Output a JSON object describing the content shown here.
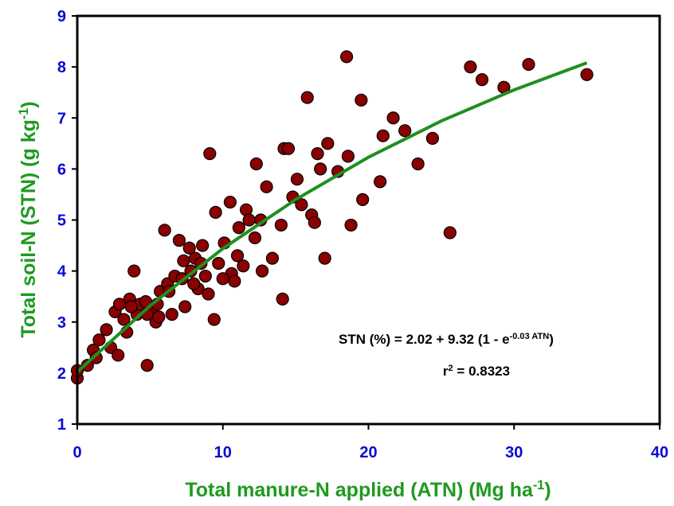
{
  "chart_data": {
    "type": "scatter",
    "xlabel": [
      "Total manure-N applied (ATN) (Mg ha",
      "-1",
      ")"
    ],
    "ylabel": [
      "Total soil-N (STN) (g kg",
      "-1",
      ")"
    ],
    "annotations": {
      "equation": [
        "STN (%) = 2.02 + 9.32 (1 - e",
        "-0.03 ATN",
        ")"
      ],
      "r2": [
        "r",
        "2",
        " = 0.8323"
      ]
    },
    "xlim": [
      0,
      40
    ],
    "xticks": [
      0,
      10,
      20,
      30,
      40
    ],
    "ylim": [
      1,
      9
    ],
    "yticks": [
      1,
      2,
      3,
      4,
      5,
      6,
      7,
      8,
      9
    ],
    "points": {
      "color": "#8b0000",
      "x": [
        0,
        0,
        0.7,
        1.1,
        1.5,
        2,
        2.3,
        2.8,
        2.6,
        3.2,
        3.4,
        3.6,
        3.9,
        4.1,
        4.3,
        4.7,
        4.8,
        5.1,
        5.4,
        5.5,
        5.7,
        6.0,
        6.2,
        6.5,
        6.7,
        7.0,
        7.3,
        7.4,
        7.7,
        7.8,
        8.1,
        8.3,
        8.6,
        8.8,
        9.1,
        9.0,
        9.4,
        9.5,
        9.7,
        10.1,
        10.5,
        10.6,
        10.8,
        11.1,
        11.4,
        11.6,
        11.8,
        12.2,
        12.3,
        12.6,
        12.7,
        13.0,
        13.4,
        14.0,
        14.1,
        14.2,
        14.5,
        14.8,
        15.1,
        15.4,
        15.8,
        16.1,
        16.3,
        16.5,
        16.7,
        17.0,
        17.2,
        17.9,
        18.5,
        18.6,
        18.8,
        19.5,
        19.6,
        20.8,
        21.0,
        21.7,
        22.5,
        23.4,
        24.4,
        25.6,
        27.0,
        27.8,
        29.3,
        31.0,
        35.0,
        1.3,
        2.9,
        3.7,
        4.8,
        5.6,
        6.3,
        7.2,
        8.0,
        8.5,
        10.0,
        11.0
      ],
      "y": [
        1.9,
        2.05,
        2.15,
        2.45,
        2.65,
        2.85,
        2.5,
        2.35,
        3.2,
        3.05,
        2.8,
        3.45,
        4.0,
        3.15,
        3.35,
        3.4,
        2.15,
        3.2,
        3.0,
        3.35,
        3.6,
        4.8,
        3.75,
        3.15,
        3.9,
        4.6,
        4.2,
        3.3,
        4.45,
        4.0,
        4.25,
        3.65,
        4.5,
        3.9,
        6.3,
        3.55,
        3.05,
        5.15,
        4.15,
        4.55,
        5.35,
        3.95,
        3.8,
        4.85,
        4.1,
        5.2,
        5.0,
        4.65,
        6.1,
        5.0,
        4.0,
        5.65,
        4.25,
        4.9,
        3.45,
        6.4,
        6.4,
        5.45,
        5.8,
        5.3,
        7.4,
        5.1,
        4.95,
        6.3,
        6.0,
        4.25,
        6.5,
        5.95,
        8.2,
        6.25,
        4.9,
        7.35,
        5.4,
        5.75,
        6.65,
        7.0,
        6.75,
        6.1,
        6.6,
        4.75,
        8.0,
        7.75,
        7.6,
        8.05,
        7.85,
        2.3,
        3.35,
        3.3,
        3.15,
        3.1,
        3.6,
        3.85,
        3.75,
        4.15,
        3.85,
        4.3
      ]
    },
    "fit": {
      "color": "#1f8f1f",
      "x": [
        0,
        5,
        10,
        15,
        20,
        25,
        30,
        35
      ],
      "y": [
        2.02,
        3.32,
        4.44,
        5.4,
        6.23,
        6.94,
        7.55,
        8.08
      ]
    }
  }
}
